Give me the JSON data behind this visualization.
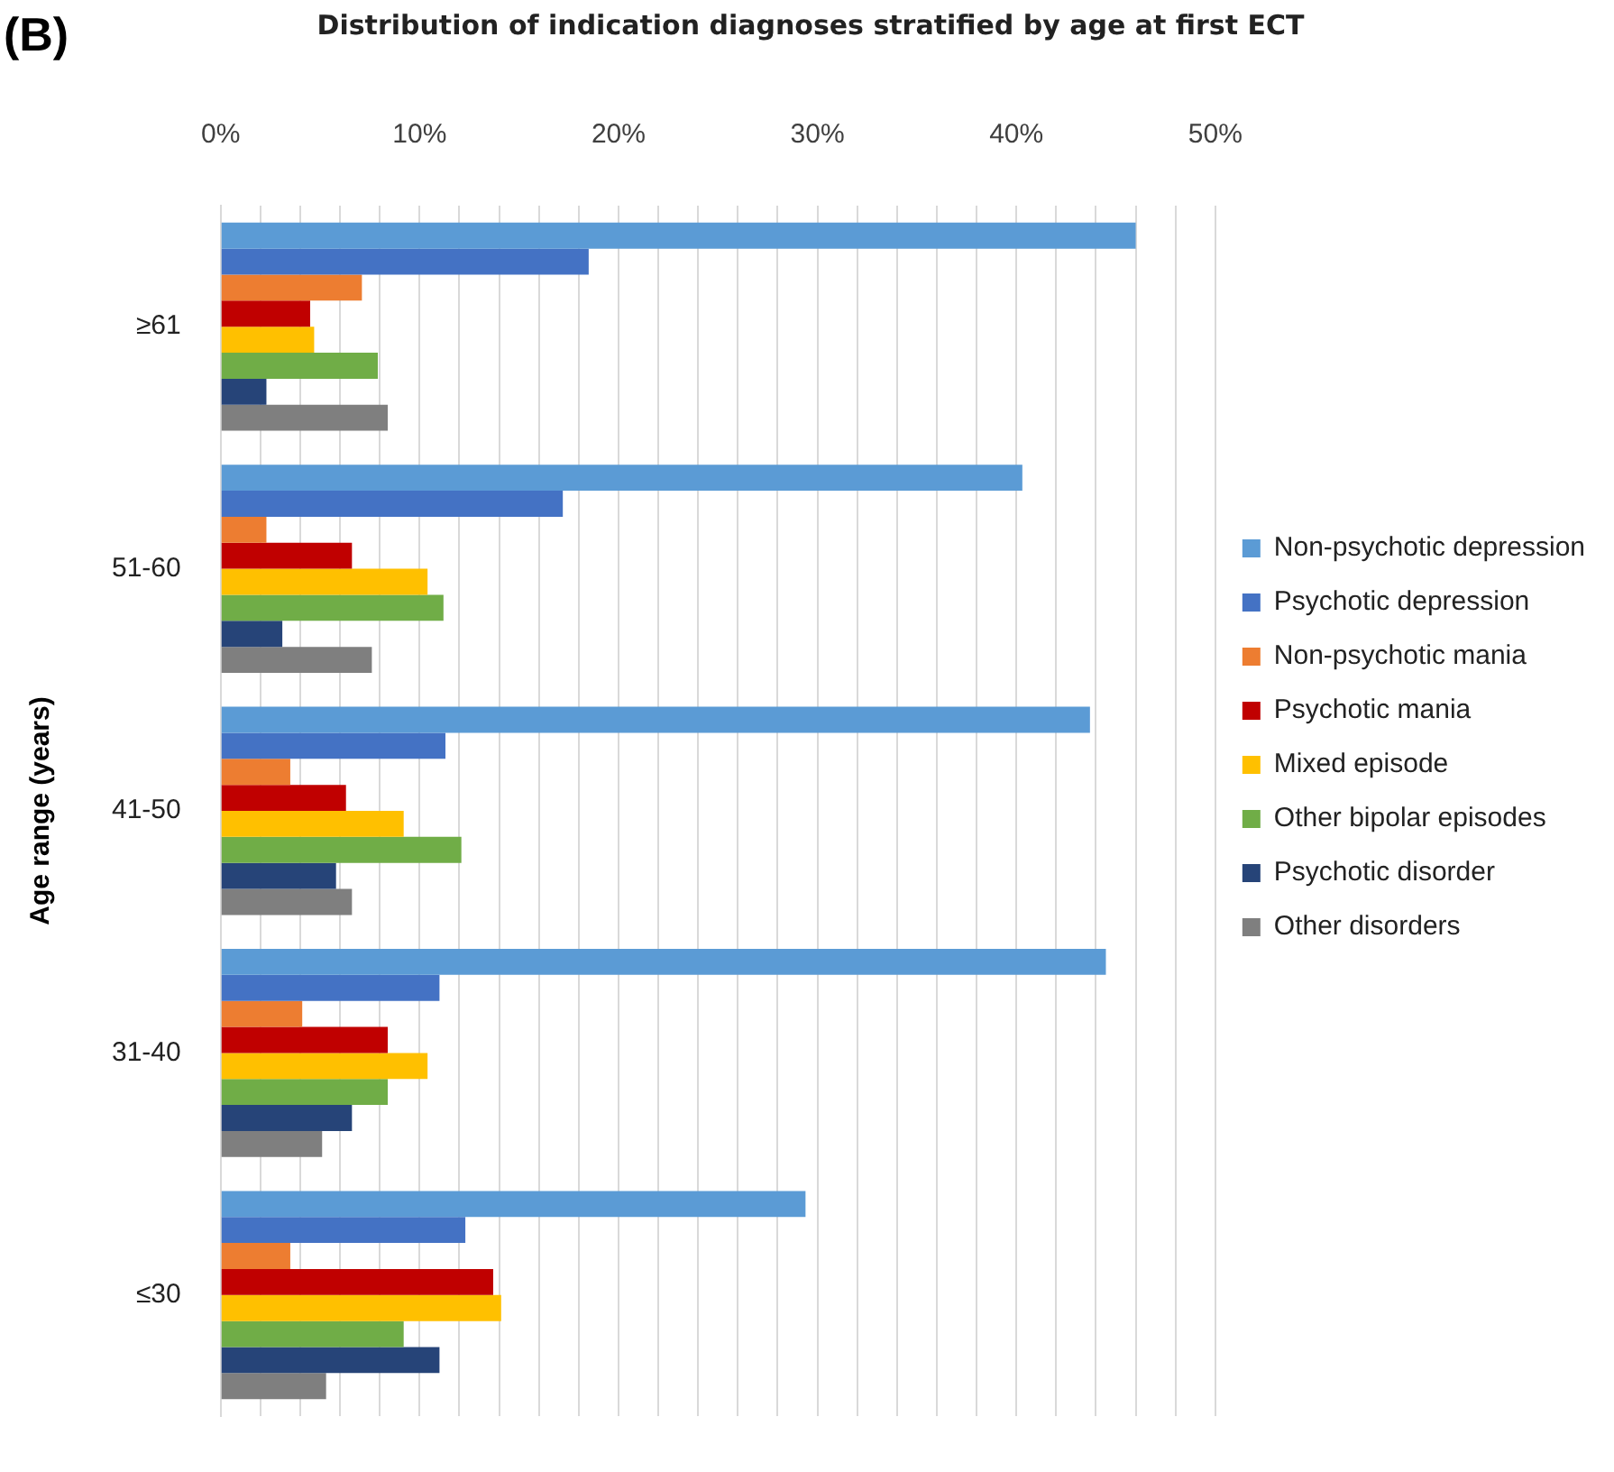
{
  "chart_data": {
    "type": "bar",
    "orientation": "horizontal",
    "title": "Distribution of indication diagnoses stratified by age at first ECT",
    "ylabel": "Age range (years)",
    "annotations": [
      "(B)"
    ],
    "categories": [
      "≥61",
      "51-60",
      "41-50",
      "31-40",
      "≤30"
    ],
    "series": [
      {
        "name": "Non-psychotic depression",
        "color": "#5b9bd5",
        "values": [
          46.0,
          40.3,
          43.7,
          44.5,
          29.4
        ]
      },
      {
        "name": "Psychotic depression",
        "color": "#4472c4",
        "values": [
          18.5,
          17.2,
          11.3,
          11.0,
          12.3
        ]
      },
      {
        "name": "Non-psychotic mania",
        "color": "#ed7d31",
        "values": [
          7.1,
          2.3,
          3.5,
          4.1,
          3.5
        ]
      },
      {
        "name": "Psychotic mania",
        "color": "#c00000",
        "values": [
          4.5,
          6.6,
          6.3,
          8.4,
          13.7
        ]
      },
      {
        "name": "Mixed episode",
        "color": "#ffc000",
        "values": [
          4.7,
          10.4,
          9.2,
          10.4,
          14.1
        ]
      },
      {
        "name": "Other bipolar episodes",
        "color": "#70ad47",
        "values": [
          7.9,
          11.2,
          12.1,
          8.4,
          9.2
        ]
      },
      {
        "name": "Psychotic disorder",
        "color": "#264478",
        "values": [
          2.3,
          3.1,
          5.8,
          6.6,
          11.0
        ]
      },
      {
        "name": "Other disorders",
        "color": "#7f7f7f",
        "values": [
          8.4,
          7.6,
          6.6,
          5.1,
          5.3
        ]
      }
    ],
    "xlim": [
      0,
      50
    ],
    "xticks": [
      {
        "value": 0,
        "label": "0%"
      },
      {
        "value": 2,
        "label": null
      },
      {
        "value": 4,
        "label": null
      },
      {
        "value": 6,
        "label": null
      },
      {
        "value": 8,
        "label": null
      },
      {
        "value": 10,
        "label": "10%"
      },
      {
        "value": 12,
        "label": null
      },
      {
        "value": 14,
        "label": null
      },
      {
        "value": 16,
        "label": null
      },
      {
        "value": 18,
        "label": null
      },
      {
        "value": 20,
        "label": "20%"
      },
      {
        "value": 22,
        "label": null
      },
      {
        "value": 24,
        "label": null
      },
      {
        "value": 26,
        "label": null
      },
      {
        "value": 28,
        "label": null
      },
      {
        "value": 30,
        "label": "30%"
      },
      {
        "value": 32,
        "label": null
      },
      {
        "value": 34,
        "label": null
      },
      {
        "value": 36,
        "label": null
      },
      {
        "value": 38,
        "label": null
      },
      {
        "value": 40,
        "label": "40%"
      },
      {
        "value": 42,
        "label": null
      },
      {
        "value": 44,
        "label": null
      },
      {
        "value": 46,
        "label": null
      },
      {
        "value": 48,
        "label": null
      },
      {
        "value": 50,
        "label": "50%"
      }
    ],
    "grid": "x",
    "legend": "right"
  }
}
